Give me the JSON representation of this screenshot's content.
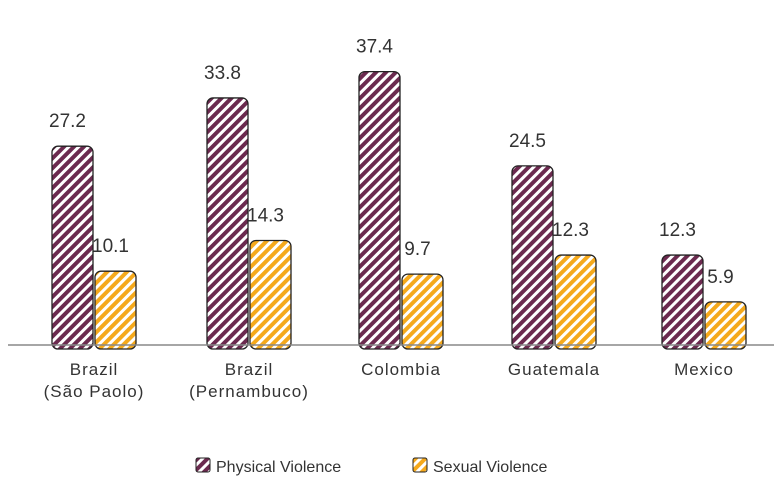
{
  "chart_data": {
    "type": "bar",
    "categories": [
      [
        "Brazil",
        "(São Paolo)"
      ],
      [
        "Brazil",
        "(Pernambuco)"
      ],
      [
        "Colombia"
      ],
      [
        "Guatemala"
      ],
      [
        "Mexico"
      ]
    ],
    "series": [
      {
        "name": "Physical Violence",
        "values": [
          27.2,
          33.8,
          37.4,
          24.5,
          12.3
        ],
        "color": "#6b2a4f"
      },
      {
        "name": "Sexual Violence",
        "values": [
          10.1,
          14.3,
          9.7,
          12.3,
          5.9
        ],
        "color": "#f5a91c"
      }
    ],
    "ylim": [
      0,
      40
    ],
    "grid": false,
    "legend_position": "bottom-center",
    "title": "",
    "xlabel": "",
    "ylabel": ""
  }
}
